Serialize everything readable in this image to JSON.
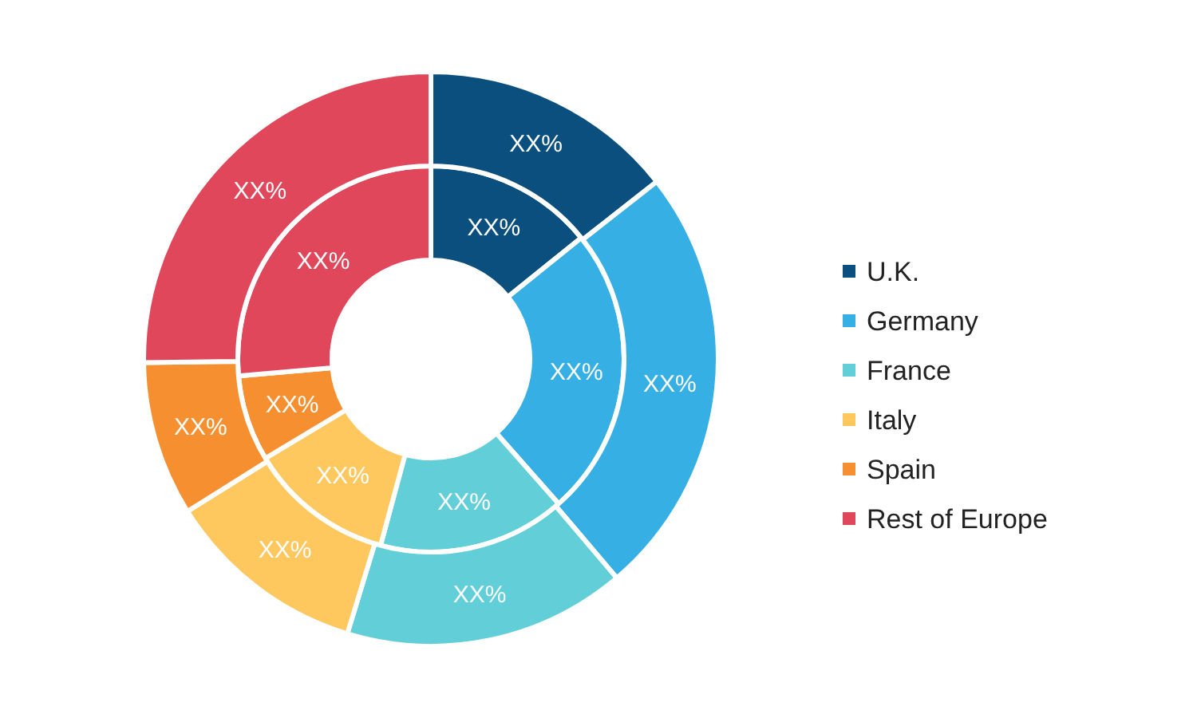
{
  "chart_data": {
    "type": "donut",
    "categories": [
      "U.K.",
      "Germany",
      "France",
      "Italy",
      "Spain",
      "Rest of Europe"
    ],
    "colors": [
      "#0b4f7e",
      "#36b0e4",
      "#62cfd8",
      "#fec85f",
      "#f68f30",
      "#e1475a"
    ],
    "series": [
      {
        "values": [
          14.2,
          24.3,
          15.7,
          12.2,
          7.2,
          26.4
        ],
        "value_labels": [
          "XX%",
          "XX%",
          "XX%",
          "XX%",
          "XX%",
          "XX%"
        ]
      },
      {
        "values": [
          14.4,
          24.4,
          15.9,
          11.4,
          8.7,
          25.2
        ],
        "value_labels": [
          "XX%",
          "XX%",
          "XX%",
          "XX%",
          "XX%",
          "XX%"
        ]
      }
    ],
    "legend": "right"
  }
}
